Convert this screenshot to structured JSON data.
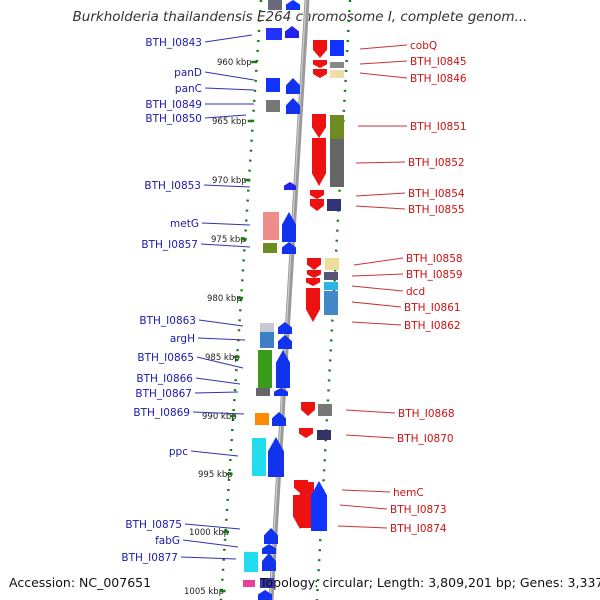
{
  "title": "Burkholderia thailandensis E264 chromosome I, complete genom...",
  "footer": {
    "accession": "Accession: NC_007651",
    "topology": "Topology: circular; Length: 3,809,201 bp; Genes: 3,337"
  },
  "colors": {
    "forward_gene": "#0000ee",
    "reverse_gene": "#ee0000",
    "backbone": "#999999",
    "track_dots": "#1a7a1a",
    "left_label": "#1a1aaa",
    "right_label": "#cc1111"
  },
  "kbp_ticks": [
    {
      "label": "960 kbp"
    },
    {
      "label": "965 kbp"
    },
    {
      "label": "970 kbp"
    },
    {
      "label": "975 kbp"
    },
    {
      "label": "980 kbp"
    },
    {
      "label": "985 kbp"
    },
    {
      "label": "990 kbp"
    },
    {
      "label": "995 kbp"
    },
    {
      "label": "1000 kbp"
    },
    {
      "label": "1005 kbp"
    }
  ],
  "left_genes": [
    {
      "label": "BTH_I0843"
    },
    {
      "label": "panD"
    },
    {
      "label": "panC"
    },
    {
      "label": "BTH_I0849"
    },
    {
      "label": "BTH_I0850"
    },
    {
      "label": "BTH_I0853"
    },
    {
      "label": "metG"
    },
    {
      "label": "BTH_I0857"
    },
    {
      "label": "BTH_I0863"
    },
    {
      "label": "argH"
    },
    {
      "label": "BTH_I0865"
    },
    {
      "label": "BTH_I0866"
    },
    {
      "label": "BTH_I0867"
    },
    {
      "label": "BTH_I0869"
    },
    {
      "label": "ppc"
    },
    {
      "label": "BTH_I0875"
    },
    {
      "label": "fabG"
    },
    {
      "label": "BTH_I0877"
    }
  ],
  "right_genes": [
    {
      "label": "cobQ"
    },
    {
      "label": "BTH_I0845"
    },
    {
      "label": "BTH_I0846"
    },
    {
      "label": "BTH_I0851"
    },
    {
      "label": "BTH_I0852"
    },
    {
      "label": "BTH_I0854"
    },
    {
      "label": "BTH_I0855"
    },
    {
      "label": "BTH_I0858"
    },
    {
      "label": "BTH_I0859"
    },
    {
      "label": "dcd"
    },
    {
      "label": "BTH_I0861"
    },
    {
      "label": "BTH_I0862"
    },
    {
      "label": "BTH_I0868"
    },
    {
      "label": "BTH_I0870"
    },
    {
      "label": "hemC"
    },
    {
      "label": "BTH_I0873"
    },
    {
      "label": "BTH_I0874"
    }
  ]
}
